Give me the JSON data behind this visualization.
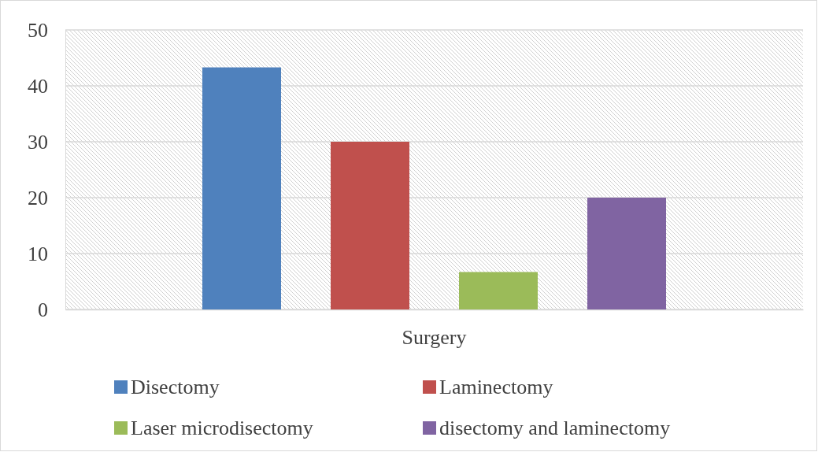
{
  "chart_data": {
    "type": "bar",
    "categories": [
      "Surgery"
    ],
    "series": [
      {
        "name": "Disectomy",
        "color": "#4f81bd",
        "values": [
          43.3
        ]
      },
      {
        "name": "Laminectomy",
        "color": "#c0504d",
        "values": [
          30
        ]
      },
      {
        "name": "Laser microdisectomy",
        "color": "#9bbb59",
        "values": [
          6.7
        ]
      },
      {
        "name": "disectomy and laminectomy",
        "color": "#8064a2",
        "values": [
          20
        ]
      }
    ],
    "ylim": [
      0,
      50
    ],
    "yticks": [
      0,
      10,
      20,
      30,
      40,
      50
    ],
    "grid": "y",
    "legend": "bottom"
  }
}
